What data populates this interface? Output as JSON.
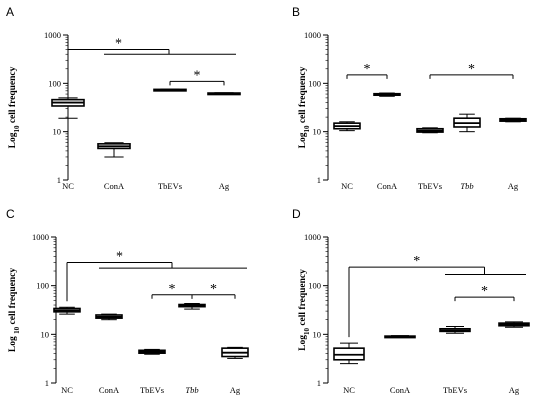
{
  "chart_data": [
    {
      "panel": "A",
      "type": "box",
      "ylabel": "Log10 cell frequency",
      "yscale": "log",
      "ylim": [
        1,
        1000
      ],
      "yticks": [
        "1",
        "10",
        "100",
        "1000"
      ],
      "categories": [
        "NC",
        "ConA",
        "TbEVs",
        "Ag"
      ],
      "boxes": [
        {
          "min": 19,
          "q1": 34,
          "median": 40,
          "q3": 46,
          "max": 50
        },
        {
          "min": 3,
          "q1": 4.5,
          "median": 5,
          "q3": 5.6,
          "max": 5.9
        },
        {
          "min": 70,
          "q1": 71,
          "median": 73,
          "q3": 75,
          "max": 76
        },
        {
          "min": 60,
          "q1": 61,
          "median": 62,
          "q3": 63,
          "max": 64
        }
      ],
      "significance": [
        {
          "type": "bracket_group",
          "from": 0,
          "to": [
            1,
            3
          ],
          "y": 500,
          "y2": 400,
          "label": "*"
        },
        {
          "type": "pair",
          "from": 2,
          "to": 3,
          "y": 110,
          "label": "*"
        }
      ]
    },
    {
      "panel": "B",
      "type": "box",
      "ylabel": "Log10 cell frequency",
      "yscale": "log",
      "ylim": [
        1,
        1000
      ],
      "yticks": [
        "1",
        "10",
        "100",
        "1000"
      ],
      "categories": [
        "NC",
        "ConA",
        "TbEVs",
        "Tbb",
        "Ag"
      ],
      "italic_categories": [
        "Tbb"
      ],
      "boxes": [
        {
          "min": 10.5,
          "q1": 11.5,
          "median": 13,
          "q3": 15,
          "max": 16
        },
        {
          "min": 54,
          "q1": 57,
          "median": 59,
          "q3": 61,
          "max": 63
        },
        {
          "min": 9.5,
          "q1": 9.8,
          "median": 10.5,
          "q3": 11.5,
          "max": 12
        },
        {
          "min": 10,
          "q1": 12.5,
          "median": 15,
          "q3": 19,
          "max": 23
        },
        {
          "min": 16,
          "q1": 16.5,
          "median": 17.5,
          "q3": 18.5,
          "max": 19
        }
      ],
      "significance": [
        {
          "type": "pair",
          "from": 0,
          "to": 1,
          "y": 150,
          "label": "*"
        },
        {
          "type": "pair",
          "from": 2,
          "to": 4,
          "y": 150,
          "label": "*"
        }
      ]
    },
    {
      "panel": "C",
      "type": "box",
      "ylabel": "Log 10 cell frequency",
      "yscale": "log",
      "ylim": [
        1,
        1000
      ],
      "yticks": [
        "1",
        "10",
        "100",
        "1000"
      ],
      "categories": [
        "NC",
        "ConA",
        "TbEVs",
        "Tbb",
        "Ag"
      ],
      "italic_categories": [
        "Tbb"
      ],
      "boxes": [
        {
          "min": 26,
          "q1": 29,
          "median": 31,
          "q3": 34,
          "max": 36
        },
        {
          "min": 20,
          "q1": 21.5,
          "median": 23,
          "q3": 25,
          "max": 26
        },
        {
          "min": 3.9,
          "q1": 4.1,
          "median": 4.4,
          "q3": 4.7,
          "max": 4.9
        },
        {
          "min": 33,
          "q1": 37,
          "median": 39,
          "q3": 41,
          "max": 43
        },
        {
          "min": 3.2,
          "q1": 3.5,
          "median": 4.2,
          "q3": 5.2,
          "max": 5.4
        }
      ],
      "significance": [
        {
          "type": "bracket_group",
          "from": 0,
          "to": [
            1,
            4
          ],
          "y": 300,
          "y2": 230,
          "label": "*"
        },
        {
          "type": "pair",
          "from": 2,
          "to": 3,
          "y": 65,
          "label": "*"
        },
        {
          "type": "pair",
          "from": 3,
          "to": 4,
          "y": 65,
          "label": "*"
        }
      ]
    },
    {
      "panel": "D",
      "type": "box",
      "ylabel": "Log10 cell frequency",
      "yscale": "log",
      "ylim": [
        1,
        1000
      ],
      "yticks": [
        "1",
        "10",
        "100",
        "1000"
      ],
      "categories": [
        "NC",
        "ConA",
        "TbEVs",
        "Ag"
      ],
      "boxes": [
        {
          "min": 2.5,
          "q1": 3,
          "median": 3.8,
          "q3": 5.2,
          "max": 6.6
        },
        {
          "min": 8.6,
          "q1": 8.8,
          "median": 9,
          "q3": 9.2,
          "max": 9.4
        },
        {
          "min": 10.5,
          "q1": 11.5,
          "median": 12,
          "q3": 13,
          "max": 14.5
        },
        {
          "min": 14,
          "q1": 15,
          "median": 16,
          "q3": 17,
          "max": 18
        }
      ],
      "significance": [
        {
          "type": "bracket_group",
          "from": 0,
          "to": [
            2,
            3
          ],
          "y": 240,
          "y2": 170,
          "label": "*"
        },
        {
          "type": "pair",
          "from": 2,
          "to": 3,
          "y": 58,
          "label": "*"
        }
      ]
    }
  ]
}
